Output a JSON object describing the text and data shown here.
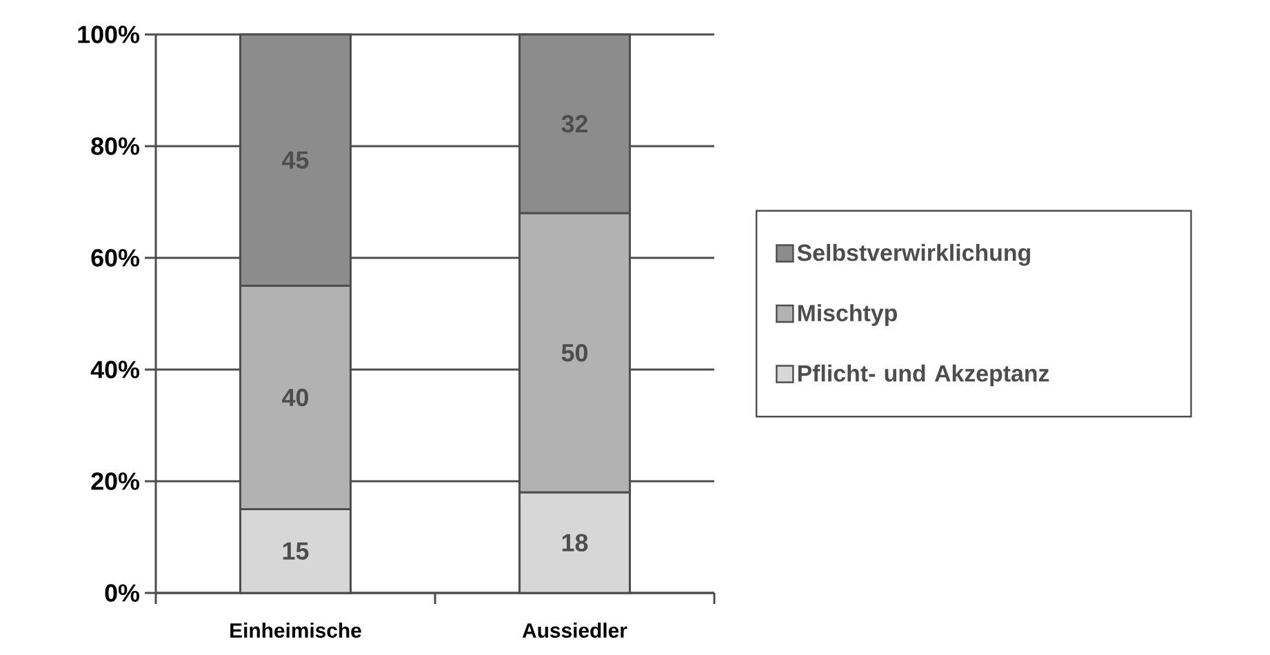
{
  "chart_data": {
    "type": "bar",
    "stacked": true,
    "categories": [
      "Einheimische",
      "Aussiedler"
    ],
    "series": [
      {
        "name": "Pflicht- und Akzeptanz",
        "color": "#d7d7d7",
        "values": [
          15,
          18
        ]
      },
      {
        "name": "Mischtyp",
        "color": "#b2b2b2",
        "values": [
          40,
          50
        ]
      },
      {
        "name": "Selbstverwirklichung",
        "color": "#8c8c8c",
        "values": [
          45,
          32
        ]
      }
    ],
    "ylim": [
      0,
      100
    ],
    "yticks": [
      {
        "value": 0,
        "label": "0%"
      },
      {
        "value": 20,
        "label": "20%"
      },
      {
        "value": 40,
        "label": "40%"
      },
      {
        "value": 60,
        "label": "60%"
      },
      {
        "value": 80,
        "label": "80%"
      },
      {
        "value": 100,
        "label": "100%"
      }
    ],
    "grid": "y",
    "legend": "right",
    "data_labels": true
  }
}
